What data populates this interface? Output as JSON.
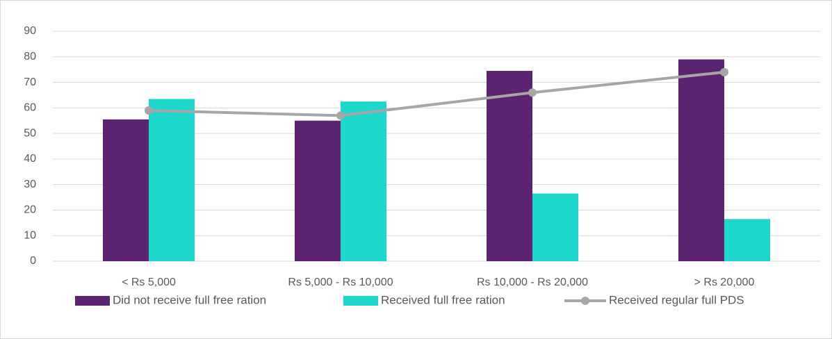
{
  "chart_data": {
    "type": "bar",
    "categories": [
      "< Rs 5,000",
      "Rs 5,000 - Rs 10,000",
      "Rs 10,000 - Rs 20,000",
      "> Rs 20,000"
    ],
    "series": [
      {
        "name": "Did not receive full free ration",
        "color": "#5c2470",
        "kind": "bar",
        "values": [
          55.5,
          55,
          74.5,
          79
        ]
      },
      {
        "name": "Received full free ration",
        "color": "#1dd6cc",
        "kind": "bar",
        "values": [
          63.5,
          62.5,
          26.5,
          16.5
        ]
      },
      {
        "name": "Received  regular full PDS",
        "color": "#a6a6a6",
        "kind": "line",
        "values": [
          59,
          57,
          66,
          74
        ]
      }
    ],
    "ylim": [
      0,
      90
    ],
    "yticks": [
      0,
      10,
      20,
      30,
      40,
      50,
      60,
      70,
      80,
      90
    ],
    "grid": true,
    "legend": "bottom"
  }
}
